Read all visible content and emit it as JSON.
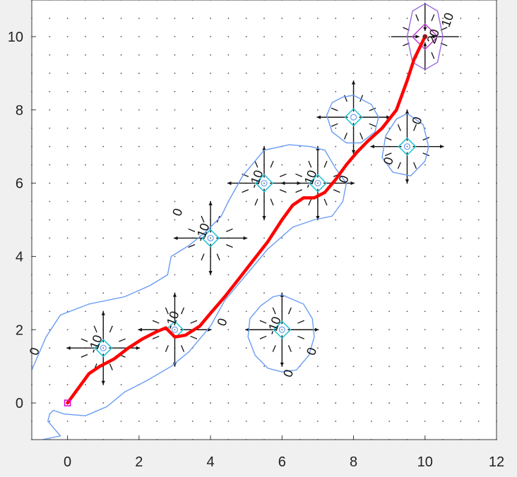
{
  "chart_data": {
    "type": "line",
    "title": "",
    "xlabel": "",
    "ylabel": "",
    "xlim": [
      -1,
      12
    ],
    "ylim": [
      -1,
      11
    ],
    "xticks": [
      0,
      2,
      4,
      6,
      8,
      10,
      12
    ],
    "yticks": [
      0,
      2,
      4,
      6,
      8,
      10
    ],
    "grid": true,
    "colors": {
      "path": "#ff0000",
      "contour_outer": "#6a9cf2",
      "contour_inner": "#1fc2d6",
      "contour_goal": "#9a6ae0",
      "arrows": "#111111",
      "start_marker": "#e000e0",
      "background": "#ffffff"
    },
    "start": [
      0,
      0
    ],
    "goal": [
      10,
      10
    ],
    "obstacles": [
      {
        "x": 1,
        "y": 1.5
      },
      {
        "x": 3,
        "y": 2
      },
      {
        "x": 4,
        "y": 4.5
      },
      {
        "x": 5.5,
        "y": 6
      },
      {
        "x": 7,
        "y": 6
      },
      {
        "x": 6,
        "y": 2
      },
      {
        "x": 8,
        "y": 7.8
      },
      {
        "x": 9.5,
        "y": 7
      }
    ],
    "path": {
      "x": [
        0,
        0.3,
        0.6,
        0.9,
        1.3,
        1.7,
        2.1,
        2.5,
        2.75,
        3.0,
        3.3,
        3.7,
        4.0,
        4.4,
        4.8,
        5.2,
        5.6,
        6.0,
        6.3,
        6.6,
        6.9,
        7.2,
        7.5,
        7.8,
        8.1,
        8.4,
        8.8,
        9.2,
        9.5,
        9.7,
        10.0
      ],
      "y": [
        0,
        0.4,
        0.8,
        1.0,
        1.2,
        1.5,
        1.75,
        1.95,
        2.05,
        1.8,
        1.85,
        2.1,
        2.45,
        2.9,
        3.4,
        3.9,
        4.4,
        5.0,
        5.4,
        5.6,
        5.6,
        5.75,
        6.1,
        6.5,
        6.85,
        7.15,
        7.5,
        8.0,
        8.8,
        9.4,
        10.0
      ]
    },
    "contours": [
      {
        "level": "0",
        "color": "outer",
        "x": [
          -1,
          -0.6,
          -0.2,
          0.6,
          1.6,
          2.3,
          2.8,
          2.9,
          3.4,
          3.9,
          4.3,
          4.5,
          4.9,
          5.5,
          6.2,
          6.8,
          7.2,
          7.5,
          7.8,
          7.7,
          7.4,
          6.9,
          6.3,
          5.6,
          5.0,
          4.4,
          4.0,
          3.4,
          2.9,
          2.2,
          1.6,
          1.1,
          0.5,
          -0.1,
          -0.4,
          -0.5,
          -0.55,
          -0.2,
          -0.7
        ],
        "y": [
          0.9,
          1.8,
          2.4,
          2.7,
          2.9,
          3.2,
          3.5,
          4.0,
          4.3,
          4.7,
          5.1,
          5.5,
          6.2,
          6.9,
          7.05,
          7.0,
          6.9,
          6.4,
          6.0,
          5.5,
          5.1,
          5.0,
          4.8,
          4.2,
          3.5,
          2.8,
          2.1,
          1.4,
          1.0,
          0.6,
          0.3,
          -0.1,
          -0.35,
          -0.3,
          -0.2,
          -0.3,
          -0.5,
          -0.9,
          -1.0
        ]
      },
      {
        "level": "0",
        "color": "outer",
        "x": [
          6.0,
          6.6,
          6.85,
          6.9,
          6.75,
          6.4,
          6.0,
          5.6,
          5.25,
          5.05,
          5.1,
          5.4,
          5.75,
          6.0
        ],
        "y": [
          2.95,
          2.7,
          2.3,
          1.8,
          1.3,
          0.9,
          0.85,
          0.95,
          1.3,
          1.8,
          2.3,
          2.65,
          2.9,
          2.95
        ]
      },
      {
        "level": "0",
        "color": "outer",
        "x": [
          8.0,
          8.5,
          8.7,
          8.6,
          8.2,
          7.8,
          7.4,
          7.25,
          7.4,
          7.7,
          8.0
        ],
        "y": [
          8.4,
          8.15,
          7.8,
          7.4,
          7.1,
          7.1,
          7.4,
          7.85,
          8.2,
          8.35,
          8.4
        ]
      },
      {
        "level": "0",
        "color": "outer",
        "x": [
          9.5,
          9.95,
          10.1,
          10.0,
          9.6,
          9.1,
          8.8,
          8.9,
          9.2,
          9.5
        ],
        "y": [
          7.9,
          7.6,
          7.0,
          6.6,
          6.2,
          6.3,
          6.7,
          7.3,
          7.75,
          7.9
        ]
      },
      {
        "level": "10",
        "color": "goal",
        "x": [
          10.0,
          10.35,
          10.5,
          10.35,
          10.0,
          9.65,
          9.5,
          9.65,
          10.0
        ],
        "y": [
          10.9,
          10.7,
          10.0,
          9.3,
          9.1,
          9.3,
          10.0,
          10.7,
          10.9
        ]
      }
    ],
    "contour_labels": [
      {
        "text": "0",
        "x": -0.9,
        "y": 1.4
      },
      {
        "text": "0",
        "x": 3.1,
        "y": 5.2
      },
      {
        "text": "0",
        "x": 4.35,
        "y": 2.2
      },
      {
        "text": "0",
        "x": 7.75,
        "y": 6.1
      },
      {
        "text": "0",
        "x": 6.2,
        "y": 0.8
      },
      {
        "text": "0",
        "x": 6.85,
        "y": 1.4
      },
      {
        "text": "0",
        "x": 9.0,
        "y": 6.6
      },
      {
        "text": "0",
        "x": 9.8,
        "y": 7.7
      },
      {
        "text": "-10",
        "x": 0.8,
        "y": 1.6
      },
      {
        "text": "-10",
        "x": 2.95,
        "y": 2.25
      },
      {
        "text": "-10",
        "x": 3.8,
        "y": 4.65
      },
      {
        "text": "-10",
        "x": 5.3,
        "y": 6.1
      },
      {
        "text": "-10",
        "x": 6.8,
        "y": 6.1
      },
      {
        "text": "-10",
        "x": 5.8,
        "y": 2.1
      },
      {
        "text": "10",
        "x": 10.65,
        "y": 10.45
      },
      {
        "text": "20",
        "x": 10.25,
        "y": 10.0
      }
    ]
  }
}
